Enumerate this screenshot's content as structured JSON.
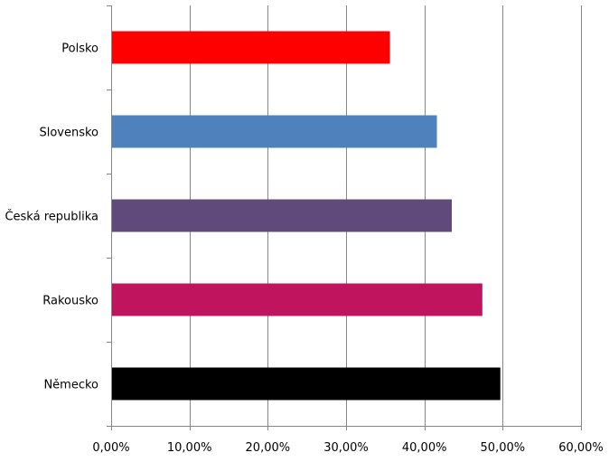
{
  "chart_data": {
    "type": "bar",
    "orientation": "horizontal",
    "title": "",
    "xlabel": "",
    "ylabel": "",
    "categories": [
      "Polsko",
      "Slovensko",
      "Česká republika",
      "Rakousko",
      "Německo"
    ],
    "values": [
      35.6,
      41.6,
      43.5,
      47.4,
      49.7
    ],
    "colors": [
      "#ff0000",
      "#4f81bd",
      "#604a7b",
      "#c0145f",
      "#000000"
    ],
    "xlim": [
      0,
      60
    ],
    "xticks": [
      0,
      10,
      20,
      30,
      40,
      50,
      60
    ],
    "xtick_labels": [
      "0,00%",
      "10,00%",
      "20,00%",
      "30,00%",
      "40,00%",
      "50,00%",
      "60,00%"
    ],
    "grid": true,
    "legend": "none"
  }
}
